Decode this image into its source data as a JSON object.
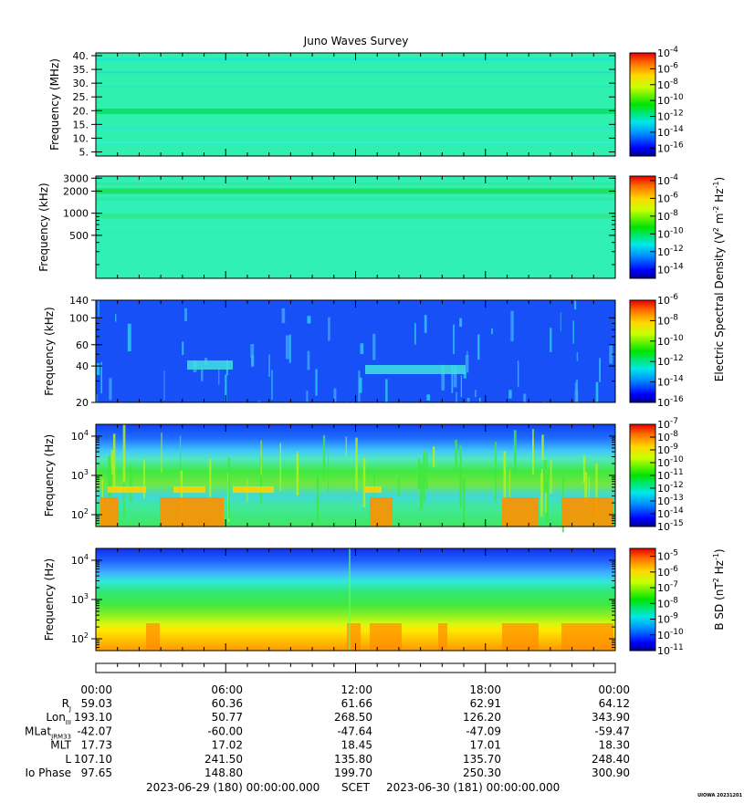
{
  "chart_data": {
    "type": "heatmap",
    "title": "Juno Waves Survey",
    "stamp": "UIOWA 20231201",
    "x_ticks": [
      "00:00",
      "06:00",
      "12:00",
      "18:00",
      "00:00"
    ],
    "scet": {
      "start": "2023-06-29 (180) 00:00:00.000",
      "label": "SCET",
      "end": "2023-06-30 (181) 00:00:00.000"
    },
    "ephemeris": [
      {
        "label": "R",
        "sub": "J",
        "values": [
          "59.03",
          "60.36",
          "61.66",
          "62.91",
          "64.12"
        ]
      },
      {
        "label": "Lon",
        "sub": "III",
        "values": [
          "193.10",
          "50.77",
          "268.50",
          "126.20",
          "343.90"
        ]
      },
      {
        "label": "MLat",
        "sub": "JRM33",
        "values": [
          "-42.07",
          "-60.00",
          "-47.64",
          "-47.09",
          "-59.47"
        ]
      },
      {
        "label": "MLT",
        "sub": "",
        "values": [
          "17.73",
          "17.02",
          "18.45",
          "17.01",
          "18.30"
        ]
      },
      {
        "label": "L",
        "sub": "",
        "values": [
          "107.10",
          "241.50",
          "135.80",
          "135.70",
          "248.40"
        ]
      },
      {
        "label": "Io Phase",
        "sub": "",
        "values": [
          "97.65",
          "148.80",
          "199.70",
          "250.30",
          "300.90"
        ]
      }
    ],
    "colorbar_label_e": {
      "main": "Electric Spectral Density (V",
      "exp1": "2",
      "mid": " m",
      "exp2": "-2",
      "mid2": " Hz",
      "exp3": "-1",
      "end": ")"
    },
    "colorbar_label_b": {
      "main": "B SD (nT",
      "exp1": "2",
      "mid": " Hz",
      "exp2": "-1",
      "end": ")"
    },
    "panels": [
      {
        "ylabel": "Frequency (MHz)",
        "scale": "linear",
        "ylim": [
          3.5,
          41
        ],
        "yticks": [
          {
            "v": 40,
            "t": "40."
          },
          {
            "v": 35,
            "t": "35."
          },
          {
            "v": 30,
            "t": "30."
          },
          {
            "v": 25,
            "t": "25."
          },
          {
            "v": 20,
            "t": "20."
          },
          {
            "v": 15,
            "t": "15."
          },
          {
            "v": 10,
            "t": "10."
          },
          {
            "v": 5,
            "t": "5."
          }
        ],
        "colorbar": {
          "range_exp": [
            -17,
            -4
          ],
          "ticks": [
            -4,
            -6,
            -8,
            -10,
            -12,
            -14,
            -16
          ]
        }
      },
      {
        "ylabel": "Frequency (kHz)",
        "scale": "log",
        "ylim": [
          130,
          3200
        ],
        "yticks": [
          {
            "v": 3000,
            "t": "3000"
          },
          {
            "v": 2000,
            "t": "2000"
          },
          {
            "v": 1000,
            "t": "1000"
          },
          {
            "v": 500,
            "t": "500"
          }
        ],
        "colorbar": {
          "range_exp": [
            -15,
            -3.5
          ],
          "ticks": [
            -4,
            -6,
            -8,
            -10,
            -12,
            -14
          ]
        }
      },
      {
        "ylabel": "Frequency (kHz)",
        "scale": "log",
        "ylim": [
          20,
          140
        ],
        "yticks": [
          {
            "v": 140,
            "t": "140"
          },
          {
            "v": 100,
            "t": "100"
          },
          {
            "v": 60,
            "t": "60"
          },
          {
            "v": 40,
            "t": "40"
          },
          {
            "v": 20,
            "t": "20"
          }
        ],
        "colorbar": {
          "range_exp": [
            -16,
            -6
          ],
          "ticks": [
            -6,
            -8,
            -10,
            -12,
            -14,
            -16
          ]
        }
      },
      {
        "ylabel": "Frequency (Hz)",
        "scale": "log",
        "ylim": [
          50,
          20000
        ],
        "yticks": [
          {
            "v": 10000,
            "t": "10",
            "e": "4"
          },
          {
            "v": 1000,
            "t": "10",
            "e": "3"
          },
          {
            "v": 100,
            "t": "10",
            "e": "2"
          }
        ],
        "colorbar": {
          "range_exp": [
            -15,
            -7
          ],
          "ticks": [
            -7,
            -8,
            -9,
            -10,
            -11,
            -12,
            -13,
            -14,
            -15
          ]
        }
      },
      {
        "ylabel": "Frequency (Hz)",
        "scale": "log",
        "ylim": [
          50,
          20000
        ],
        "yticks": [
          {
            "v": 10000,
            "t": "10",
            "e": "4"
          },
          {
            "v": 1000,
            "t": "10",
            "e": "3"
          },
          {
            "v": 100,
            "t": "10",
            "e": "2"
          }
        ],
        "colorbar": {
          "range_exp": [
            -11,
            -4.5
          ],
          "ticks": [
            -5,
            -6,
            -7,
            -8,
            -9,
            -10,
            -11
          ]
        }
      }
    ]
  }
}
